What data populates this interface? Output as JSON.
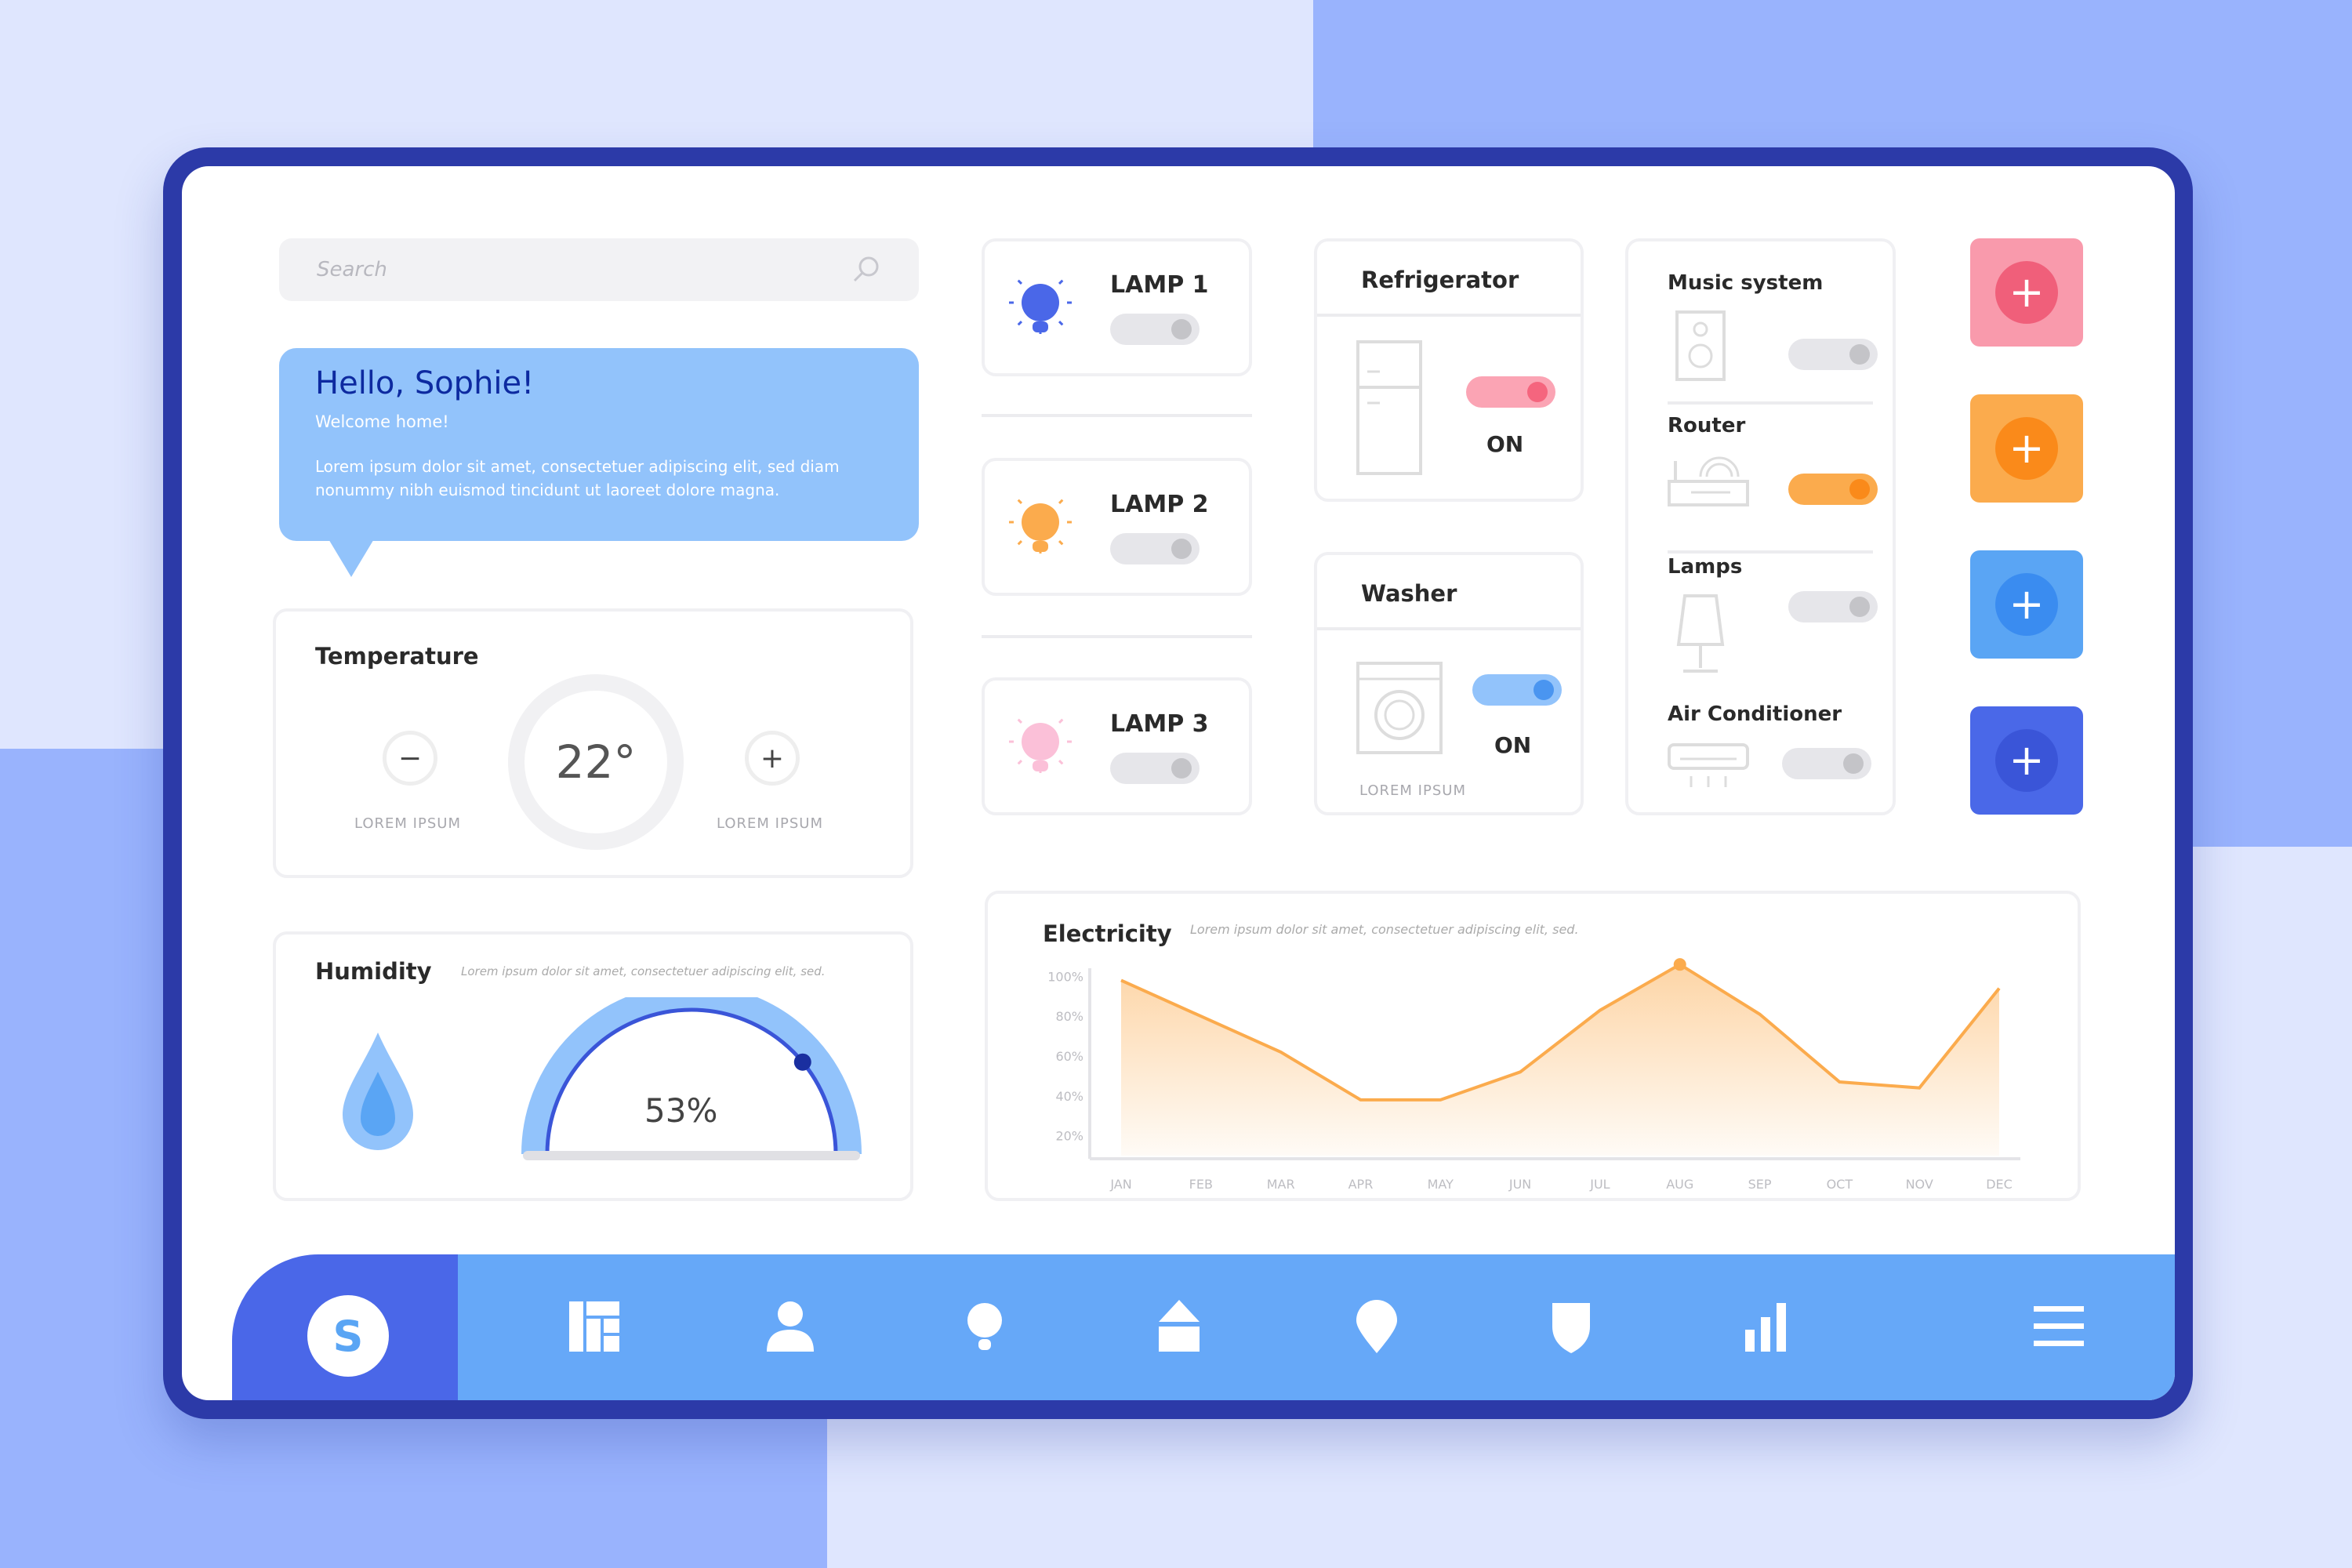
{
  "search": {
    "placeholder": "Search"
  },
  "welcome": {
    "title": "Hello, Sophie!",
    "subtitle": "Welcome home!",
    "body": "Lorem ipsum dolor sit amet, consectetuer adipiscing elit, sed diam nonummy nibh euismod tincidunt ut laoreet dolore magna."
  },
  "temperature": {
    "title": "Temperature",
    "value": "22°",
    "minus_label": "LOREM IPSUM",
    "plus_label": "LOREM IPSUM"
  },
  "humidity": {
    "title": "Humidity",
    "description": "Lorem ipsum dolor sit amet, consectetuer adipiscing elit, sed.",
    "value": "53%",
    "level": 0.53
  },
  "lamps": [
    {
      "name": "LAMP 1",
      "on": false,
      "color": "#4a67e8"
    },
    {
      "name": "LAMP 2",
      "on": false,
      "color": "#fbab4d"
    },
    {
      "name": "LAMP 3",
      "on": false,
      "color": "#fbc0d8"
    }
  ],
  "refrigerator": {
    "title": "Refrigerator",
    "status": "ON",
    "on": true,
    "color": "#f5657e"
  },
  "washer": {
    "title": "Washer",
    "status": "ON",
    "on": true,
    "caption": "LOREM IPSUM",
    "color": "#4a95f0"
  },
  "devices": [
    {
      "name": "Music system",
      "on": false
    },
    {
      "name": "Router",
      "on": true,
      "color": "#fa8a1a"
    },
    {
      "name": "Lamps",
      "on": false
    },
    {
      "name": "Air Conditioner",
      "on": false
    }
  ],
  "add_buttons": [
    {
      "bg": "#f99aac",
      "fg": "#f05f7a"
    },
    {
      "bg": "#fbab4d",
      "fg": "#fa8a1a"
    },
    {
      "bg": "#5aa5f4",
      "fg": "#3a8cf0"
    },
    {
      "bg": "#4a68e8",
      "fg": "#3a55d8"
    }
  ],
  "electricity": {
    "title": "Electricity",
    "description": "Lorem ipsum dolor sit amet, consectetuer adipiscing elit, sed."
  },
  "chart_data": {
    "type": "area",
    "title": "Electricity",
    "categories": [
      "JAN",
      "FEB",
      "MAR",
      "APR",
      "MAY",
      "JUN",
      "JUL",
      "AUG",
      "SEP",
      "OCT",
      "NOV",
      "DEC"
    ],
    "values": [
      98,
      80,
      62,
      38,
      38,
      52,
      83,
      106,
      81,
      47,
      44,
      94
    ],
    "yticks": [
      "100%",
      "80%",
      "60%",
      "40%",
      "20%"
    ],
    "ylim": [
      10,
      110
    ],
    "color": "#fbab4d",
    "highlight": "AUG",
    "grid": false
  },
  "nav": {
    "avatar_letter": "S",
    "items": [
      "dashboard",
      "user",
      "bulb",
      "home",
      "location",
      "shield",
      "stats",
      "menu"
    ]
  }
}
